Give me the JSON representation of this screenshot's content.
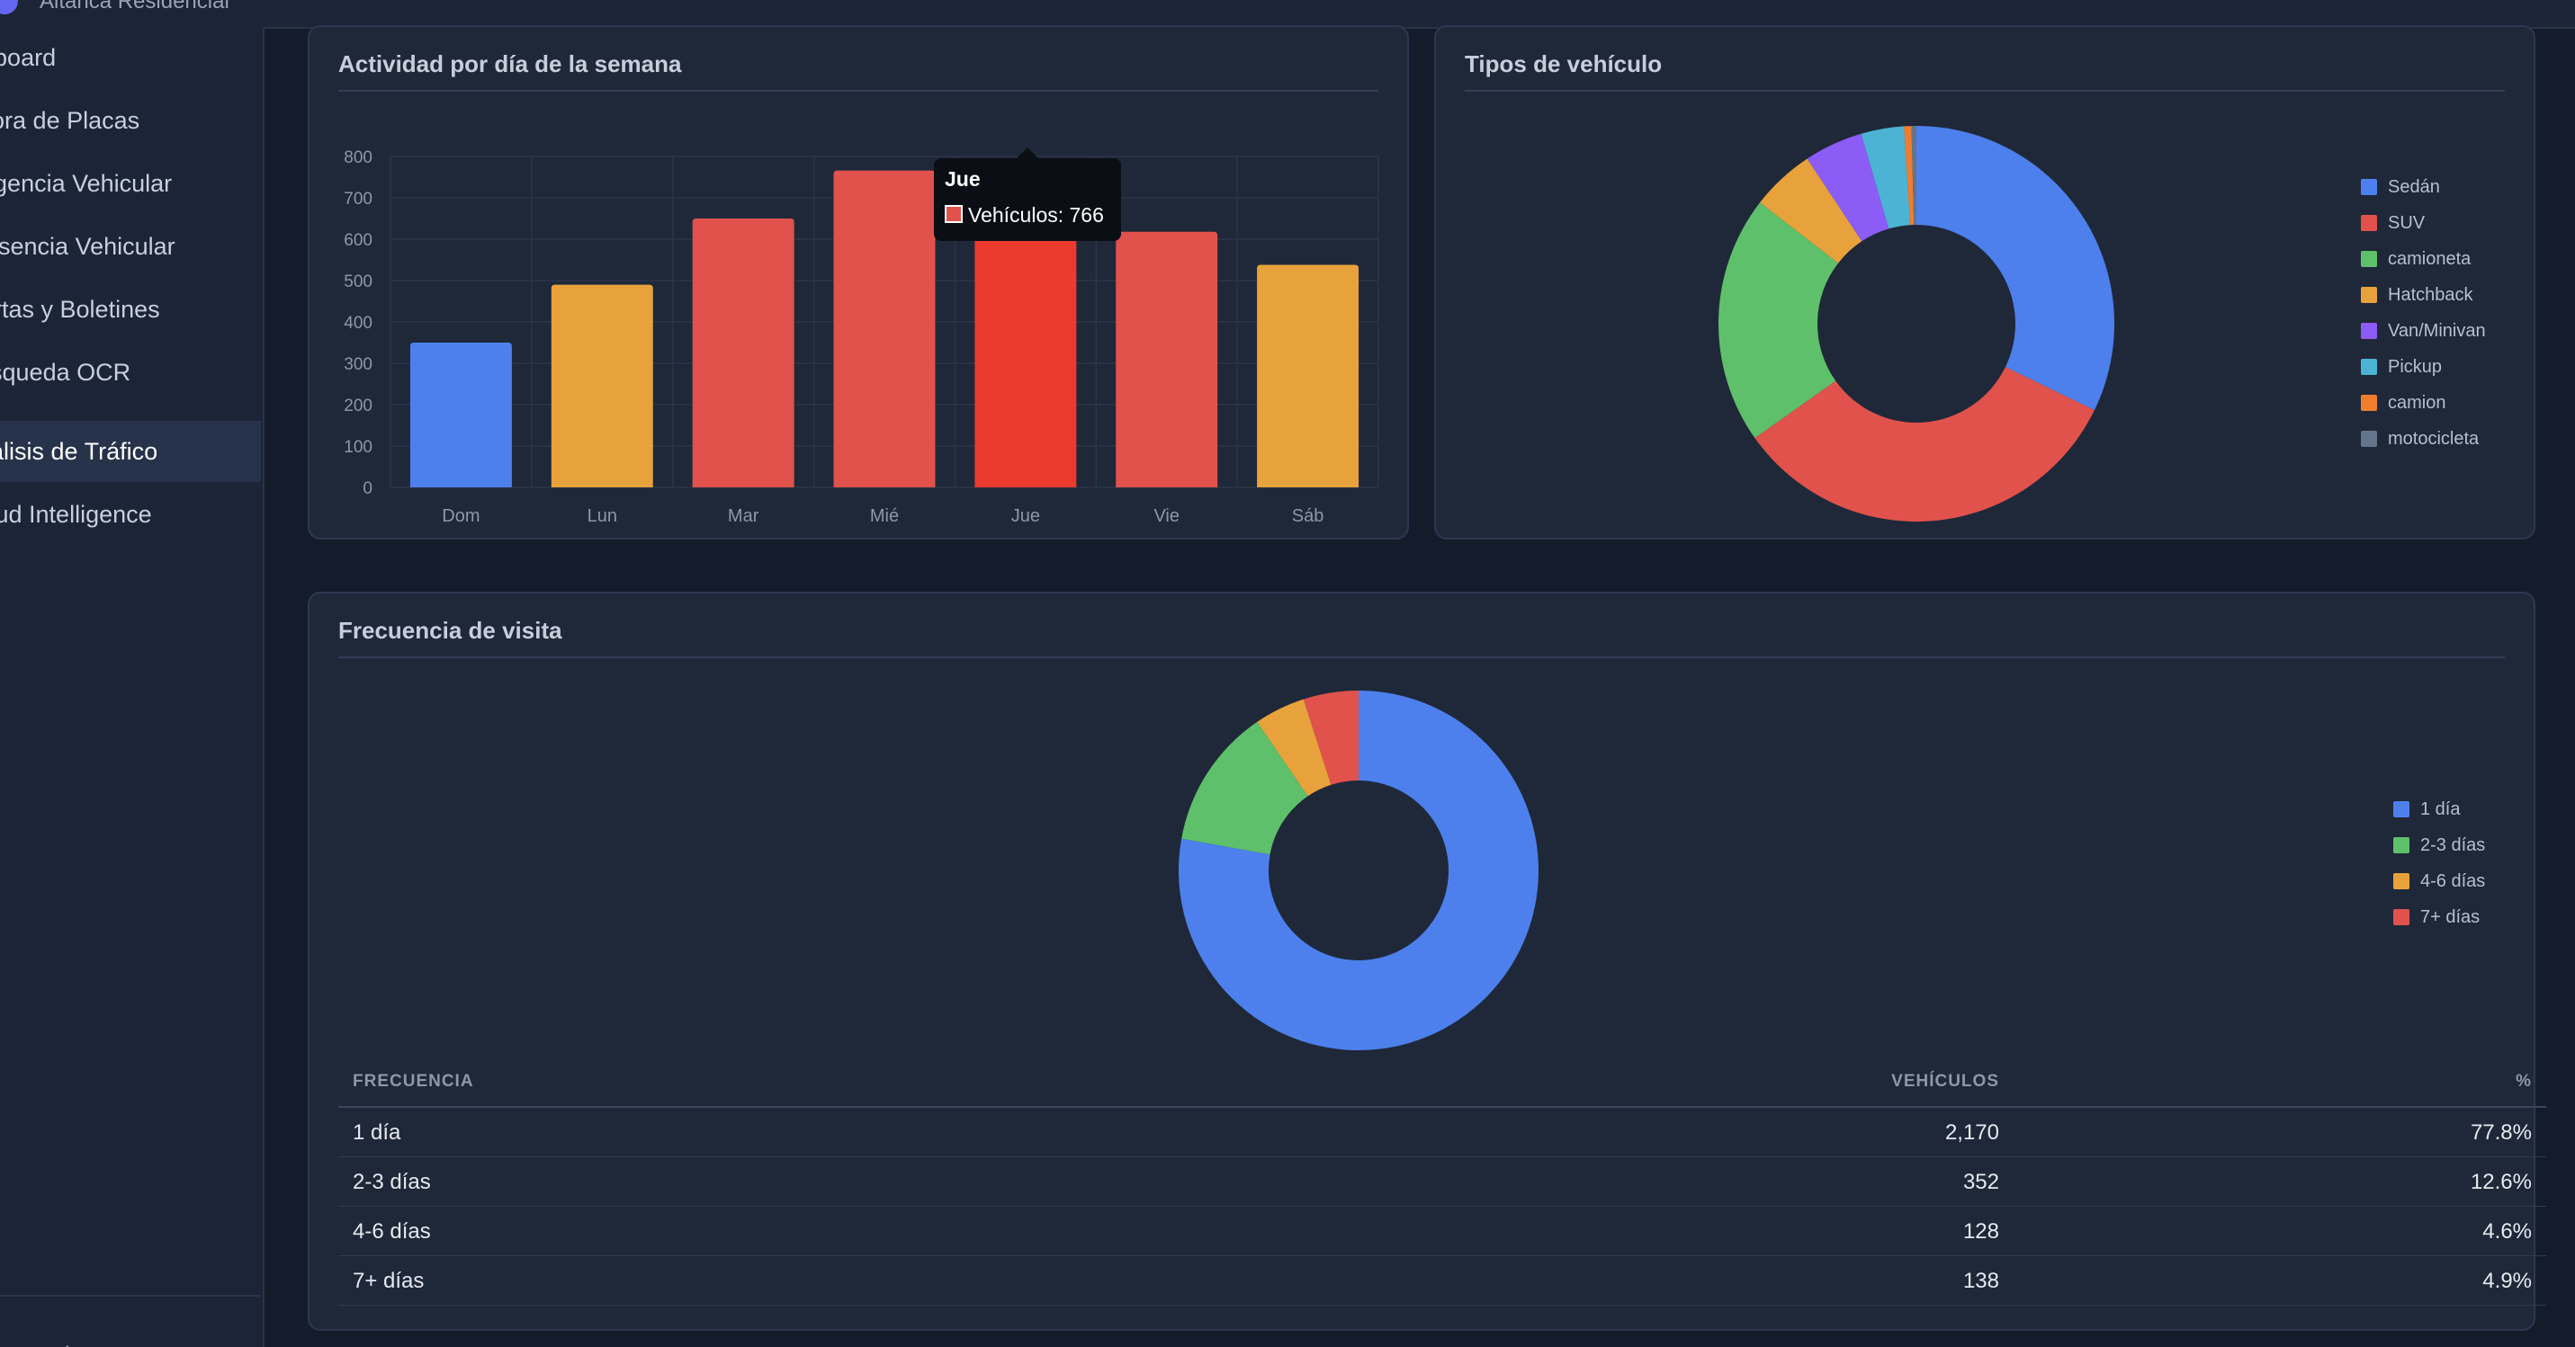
{
  "brand": {
    "name": "Altanca Residencial"
  },
  "sidebar": {
    "items": [
      {
        "label": "Dashboard",
        "active": false
      },
      {
        "label": "Bitácora de Placas",
        "active": false
      },
      {
        "label": "Inteligencia Vehicular",
        "active": false
      },
      {
        "label": "Presencia Vehicular",
        "active": false
      },
      {
        "label": "Alertas y Boletines",
        "active": false
      },
      {
        "label": "Búsqueda OCR",
        "active": false
      },
      {
        "label": "Análisis de Tráfico",
        "active": true
      },
      {
        "label": "Fraud Intelligence",
        "active": false
      }
    ]
  },
  "weekday_panel": {
    "title": "Actividad por día de la semana"
  },
  "vehicle_panel": {
    "title": "Tipos de vehículo"
  },
  "frequency_panel": {
    "title": "Frecuencia de visita"
  },
  "tooltip": {
    "title": "Jue",
    "label": "Vehículos: 766"
  },
  "table": {
    "headers": {
      "frequency": "FRECUENCIA",
      "vehicles": "VEHÍCULOS",
      "percent": "%"
    },
    "rows": [
      {
        "frequency": "1 día",
        "vehicles": "2,170",
        "percent": "77.8%"
      },
      {
        "frequency": "2-3 días",
        "vehicles": "352",
        "percent": "12.6%"
      },
      {
        "frequency": "4-6 días",
        "vehicles": "128",
        "percent": "4.6%"
      },
      {
        "frequency": "7+ días",
        "vehicles": "138",
        "percent": "4.9%"
      }
    ]
  },
  "chart_data": [
    {
      "type": "bar",
      "title": "Actividad por día de la semana",
      "categories": [
        "Dom",
        "Lun",
        "Mar",
        "Mié",
        "Jue",
        "Vie",
        "Sáb"
      ],
      "values": [
        350,
        490,
        650,
        766,
        766,
        618,
        538
      ],
      "colors": [
        "#4d80ec",
        "#e8a23b",
        "#e0524b",
        "#e0524b",
        "#ec3a2e",
        "#e0524b",
        "#e8a23b"
      ],
      "ylim": [
        0,
        800
      ],
      "yticks": [
        0,
        100,
        200,
        300,
        400,
        500,
        600,
        700,
        800
      ],
      "grid": true,
      "xlabel": "",
      "ylabel": ""
    },
    {
      "type": "pie",
      "title": "Tipos de vehículo",
      "labels": [
        "Sedán",
        "SUV",
        "camioneta",
        "Hatchback",
        "Van/Minivan",
        "Pickup",
        "camion",
        "motocicleta"
      ],
      "values": [
        32.2,
        33.0,
        20.3,
        5.2,
        4.8,
        3.5,
        0.6,
        0.4
      ],
      "colors": [
        "#4d80ec",
        "#e0524b",
        "#5ec06a",
        "#e8a23b",
        "#8b5cf6",
        "#4cb3d4",
        "#f07d2e",
        "#64748b"
      ],
      "legend": "right"
    },
    {
      "type": "pie",
      "title": "Frecuencia de visita",
      "labels": [
        "1 día",
        "2-3 días",
        "4-6 días",
        "7+ días"
      ],
      "values": [
        2170,
        352,
        128,
        138
      ],
      "colors": [
        "#4d80ec",
        "#5ec06a",
        "#e8a23b",
        "#e0524b"
      ],
      "legend": "right"
    }
  ]
}
